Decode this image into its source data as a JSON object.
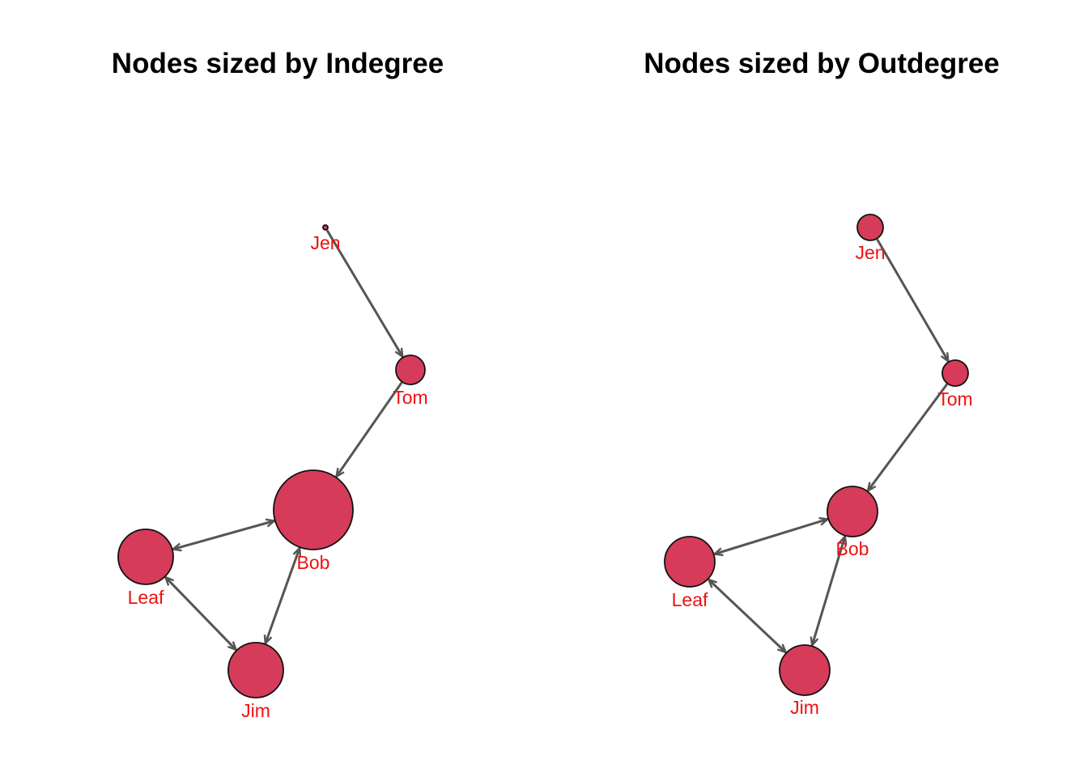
{
  "colors": {
    "node_fill": "#d63b5a",
    "node_stroke": "#111111",
    "edge": "#555555",
    "label": "#ee1111"
  },
  "panels": [
    {
      "title": "Nodes sized by Indegree",
      "size_metric": "indegree",
      "nodes": [
        {
          "id": "jen",
          "label": "Jen",
          "indegree": 0,
          "outdegree": 1
        },
        {
          "id": "tom",
          "label": "Tom",
          "indegree": 1,
          "outdegree": 1
        },
        {
          "id": "bob",
          "label": "Bob",
          "indegree": 3,
          "outdegree": 2
        },
        {
          "id": "leaf",
          "label": "Leaf",
          "indegree": 2,
          "outdegree": 2
        },
        {
          "id": "jim",
          "label": "Jim",
          "indegree": 2,
          "outdegree": 2
        }
      ]
    },
    {
      "title": "Nodes sized by Outdegree",
      "size_metric": "outdegree",
      "nodes": [
        {
          "id": "jen",
          "label": "Jen",
          "indegree": 0,
          "outdegree": 1
        },
        {
          "id": "tom",
          "label": "Tom",
          "indegree": 1,
          "outdegree": 1
        },
        {
          "id": "bob",
          "label": "Bob",
          "indegree": 3,
          "outdegree": 2
        },
        {
          "id": "leaf",
          "label": "Leaf",
          "indegree": 2,
          "outdegree": 2
        },
        {
          "id": "jim",
          "label": "Jim",
          "indegree": 2,
          "outdegree": 2
        }
      ]
    }
  ],
  "edges": [
    {
      "from": "jen",
      "to": "tom"
    },
    {
      "from": "tom",
      "to": "bob"
    },
    {
      "from": "bob",
      "to": "leaf"
    },
    {
      "from": "leaf",
      "to": "bob"
    },
    {
      "from": "bob",
      "to": "jim"
    },
    {
      "from": "jim",
      "to": "bob"
    },
    {
      "from": "leaf",
      "to": "jim"
    },
    {
      "from": "jim",
      "to": "leaf"
    }
  ]
}
